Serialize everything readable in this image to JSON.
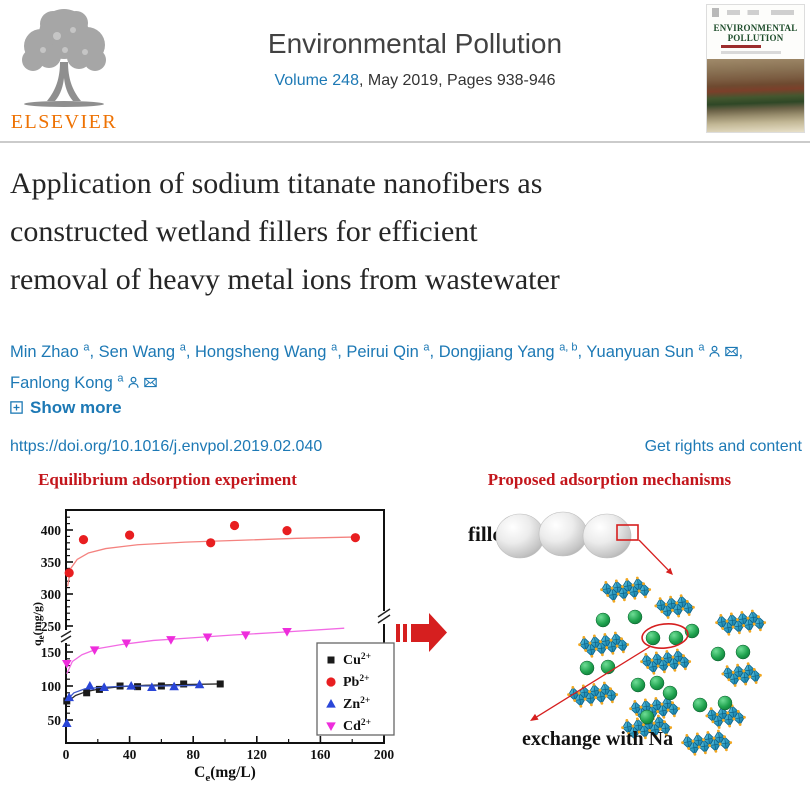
{
  "colors": {
    "link_blue": "#1d79b5",
    "elsevier_orange": "#ee7203",
    "ga_header_red": "#c3161c",
    "arrow_red": "#d61f1f",
    "octahedron_teal": "#2f9fc4",
    "octahedron_node_orange": "#f2a71f",
    "sodium_ion_green": "#1fa24e",
    "cover_title_green": "#1e4d2b"
  },
  "icons": {
    "logo": "elsevier-tree-icon",
    "author_profile": "person-icon",
    "author_email": "envelope-icon",
    "show_more": "plus-box-icon",
    "transition": "right-block-arrow-icon"
  },
  "header": {
    "publisher": "ELSEVIER",
    "journal": "Environmental Pollution",
    "volume_link": "Volume 248",
    "issue_info": ", May 2019, Pages 938-946",
    "cover_title": "ENVIRONMENTAL POLLUTION"
  },
  "article": {
    "title_lines": [
      "Application of sodium titanate nanofibers as",
      "constructed wetland fillers for efficient",
      "removal of heavy metal ions from wastewater"
    ],
    "authors": [
      {
        "name": "Min Zhao",
        "sup": "a"
      },
      {
        "name": "Sen Wang",
        "sup": "a"
      },
      {
        "name": "Hongsheng Wang",
        "sup": "a"
      },
      {
        "name": "Peirui Qin",
        "sup": "a"
      },
      {
        "name": "Dongjiang Yang",
        "sup": "a, b"
      },
      {
        "name": "Yuanyuan Sun",
        "sup": "a",
        "person": true,
        "mail": true,
        "break_after": true
      },
      {
        "name": "Fanlong Kong",
        "sup": "a",
        "person": true,
        "mail": true
      }
    ],
    "show_more": "Show more",
    "doi": "https://doi.org/10.1016/j.envpol.2019.02.040",
    "rights": "Get rights and content"
  },
  "graphical_abstract": {
    "left_title": "Equilibrium adsorption experiment",
    "right_title": "Proposed adsorption mechanisms",
    "filler_label": "filler",
    "exchange_label": "exchange with Na"
  },
  "chart_data": {
    "type": "scatter",
    "title": "Equilibrium adsorption experiment",
    "xlabel": "Ce(mg/L)",
    "ylabel": "qe(mg/g)",
    "xlim": [
      0,
      200
    ],
    "x_major_ticks": [
      0,
      40,
      80,
      120,
      160,
      200
    ],
    "x_minor_ticks": [
      20,
      60,
      100,
      140,
      180
    ],
    "y_axis_break_between": [
      150,
      250
    ],
    "y_major_ticks_lower": [
      50,
      100,
      150
    ],
    "y_major_ticks_upper": [
      250,
      300,
      350,
      400
    ],
    "y_minor_ticks_lower": [
      60,
      70,
      80,
      90,
      110,
      120,
      130,
      140,
      160,
      170
    ],
    "y_minor_ticks_upper": [
      260,
      270,
      280,
      290,
      310,
      320,
      330,
      340,
      360,
      370,
      380,
      390,
      410,
      420
    ],
    "grid": false,
    "legend_position": "lower right",
    "series": [
      {
        "label": "Cu",
        "sup": "2+",
        "marker": "square",
        "color": "#1a1a1a",
        "line_color": "#2a2a2a",
        "points": [
          [
            0.5,
            78
          ],
          [
            13,
            90
          ],
          [
            21,
            95
          ],
          [
            34,
            100
          ],
          [
            45,
            99
          ],
          [
            60,
            100
          ],
          [
            74,
            103
          ],
          [
            97,
            103
          ]
        ],
        "fit_line": [
          [
            0.5,
            76
          ],
          [
            6,
            86
          ],
          [
            13,
            92
          ],
          [
            22,
            96
          ],
          [
            34,
            99
          ],
          [
            50,
            101
          ],
          [
            70,
            102
          ],
          [
            97,
            103
          ]
        ]
      },
      {
        "label": "Pb",
        "sup": "2+",
        "marker": "circle",
        "color": "#e81e20",
        "line_color": "#f4827f",
        "points": [
          [
            2,
            333
          ],
          [
            11,
            385
          ],
          [
            40,
            392
          ],
          [
            91,
            380
          ],
          [
            106,
            407
          ],
          [
            139,
            399
          ],
          [
            182,
            388
          ]
        ],
        "fit_line": [
          [
            1,
            312
          ],
          [
            3,
            340
          ],
          [
            7,
            354
          ],
          [
            14,
            364
          ],
          [
            25,
            371
          ],
          [
            45,
            377
          ],
          [
            75,
            381
          ],
          [
            110,
            384
          ],
          [
            145,
            387
          ],
          [
            180,
            389
          ]
        ]
      },
      {
        "label": "Zn",
        "sup": "2+",
        "marker": "triangle-up",
        "color": "#2a46d8",
        "line_color": "#3d59c8",
        "points": [
          [
            0.5,
            45
          ],
          [
            2,
            83
          ],
          [
            15,
            100
          ],
          [
            24,
            98
          ],
          [
            41,
            100
          ],
          [
            54,
            98
          ],
          [
            68,
            99
          ],
          [
            84,
            102
          ]
        ],
        "fit_line": [
          [
            0.5,
            79
          ],
          [
            5,
            90
          ],
          [
            12,
            96
          ],
          [
            22,
            98
          ],
          [
            38,
            100
          ],
          [
            60,
            100
          ],
          [
            84,
            101
          ]
        ]
      },
      {
        "label": "Cd",
        "sup": "2+",
        "marker": "triangle-down",
        "color": "#ee2ddc",
        "line_color": "#f26ae4",
        "points": [
          [
            0.5,
            133
          ],
          [
            18,
            153
          ],
          [
            38,
            163
          ],
          [
            66,
            168
          ],
          [
            89,
            172
          ],
          [
            113,
            175
          ],
          [
            139,
            180
          ]
        ],
        "fit_line": [
          [
            0.5,
            118
          ],
          [
            4,
            136
          ],
          [
            10,
            146
          ],
          [
            20,
            155
          ],
          [
            35,
            161
          ],
          [
            55,
            167
          ],
          [
            80,
            171
          ],
          [
            105,
            175
          ],
          [
            135,
            179
          ],
          [
            175,
            185
          ]
        ]
      }
    ]
  }
}
